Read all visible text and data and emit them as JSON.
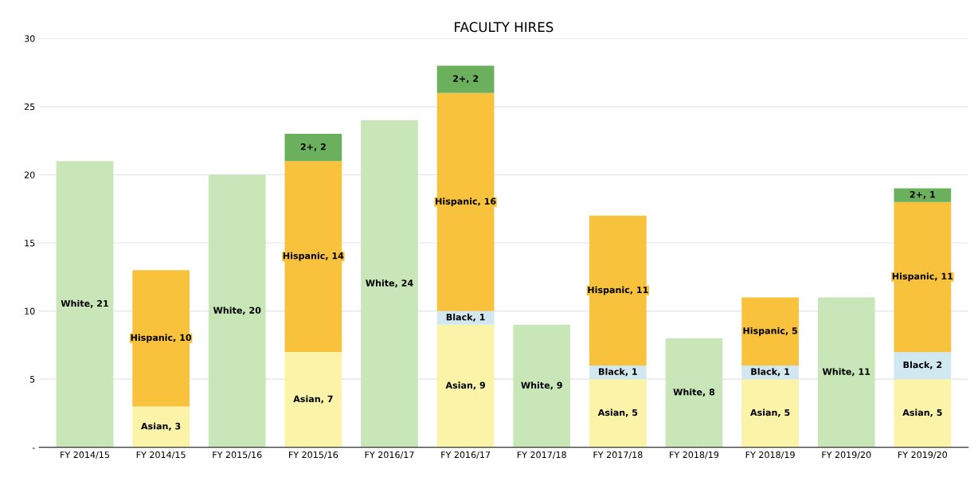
{
  "chart_data": {
    "type": "bar",
    "title": "FACULTY HIRES",
    "stacked": true,
    "grid": "y",
    "legend": false,
    "categories": [
      "FY 2014/15",
      "FY 2014/15",
      "FY 2015/16",
      "FY 2015/16",
      "FY 2016/17",
      "FY 2016/17",
      "FY 2017/18",
      "FY 2017/18",
      "FY 2018/19",
      "FY 2018/19",
      "FY 2019/20",
      "FY 2019/20"
    ],
    "ylim": [
      0,
      30
    ],
    "yticks": [
      {
        "value": 0,
        "label": "-"
      },
      5,
      10,
      15,
      20,
      25,
      30
    ],
    "series": [
      {
        "color": "#c8e6b8",
        "values": [
          21,
          null,
          20,
          null,
          24,
          null,
          9,
          null,
          8,
          null,
          11,
          null
        ],
        "value_labels": [
          "White, 21",
          null,
          "White, 20",
          null,
          "White, 24",
          null,
          "White, 9",
          null,
          "White, 8",
          null,
          "White, 11",
          null
        ]
      },
      {
        "color": "#fbf3a8",
        "values": [
          null,
          3,
          null,
          7,
          null,
          9,
          null,
          5,
          null,
          5,
          null,
          5
        ],
        "value_labels": [
          null,
          "Asian, 3",
          null,
          "Asian, 7",
          null,
          "Asian, 9",
          null,
          "Asian, 5",
          null,
          "Asian, 5",
          null,
          "Asian, 5"
        ]
      },
      {
        "color": "#d2e8f0",
        "values": [
          null,
          null,
          null,
          null,
          null,
          1,
          null,
          1,
          null,
          1,
          null,
          2
        ],
        "value_labels": [
          null,
          null,
          null,
          null,
          null,
          "Black, 1",
          null,
          "Black, 1",
          null,
          "Black, 1",
          null,
          "Black, 2"
        ]
      },
      {
        "color": "#f8c23c",
        "values": [
          null,
          10,
          null,
          14,
          null,
          16,
          null,
          11,
          null,
          5,
          null,
          11
        ],
        "value_labels": [
          null,
          "Hispanic, 10",
          null,
          "Hispanic, 14",
          null,
          "Hispanic, 16",
          null,
          "Hispanic, 11",
          null,
          "Hispanic, 5",
          null,
          "Hispanic, 11"
        ]
      },
      {
        "color": "#6bb05c",
        "values": [
          null,
          null,
          null,
          2,
          null,
          2,
          null,
          null,
          null,
          null,
          null,
          1
        ],
        "value_labels": [
          null,
          null,
          null,
          "2+, 2",
          null,
          "2+, 2",
          null,
          null,
          null,
          null,
          null,
          "2+, 1"
        ]
      }
    ]
  }
}
